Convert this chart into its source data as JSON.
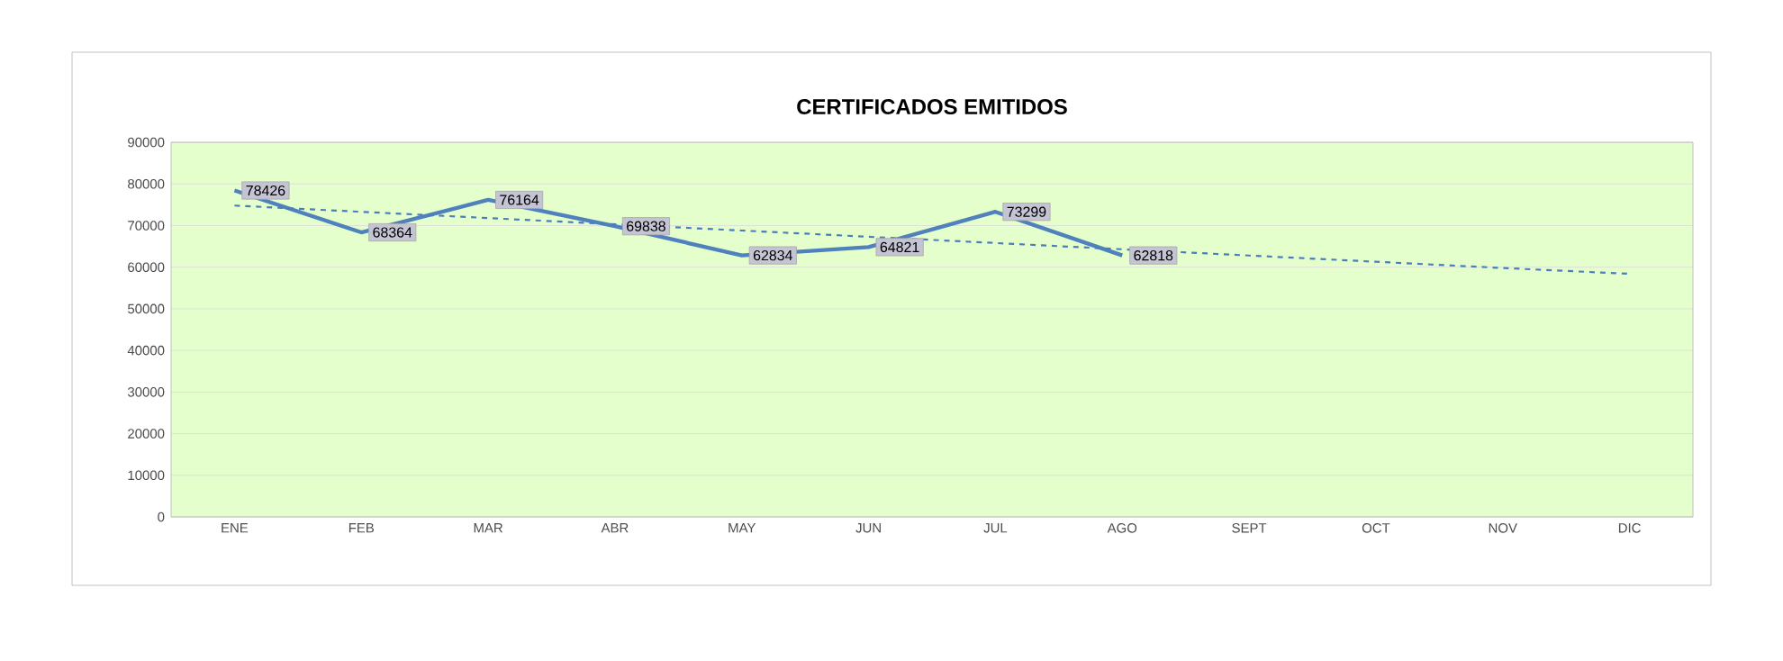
{
  "chart_data": {
    "type": "line",
    "title": "CERTIFICADOS EMITIDOS",
    "categories": [
      "ENE",
      "FEB",
      "MAR",
      "ABR",
      "MAY",
      "JUN",
      "JUL",
      "AGO",
      "SEPT",
      "OCT",
      "NOV",
      "DIC"
    ],
    "series": [
      {
        "color": "#4f81bd",
        "values": [
          78426,
          68364,
          76164,
          69838,
          62834,
          64821,
          73299,
          62818,
          null,
          null,
          null,
          null
        ],
        "value_labels": [
          "78426",
          "68364",
          "76164",
          "69838",
          "62834",
          "64821",
          "73299",
          "62818",
          null,
          null,
          null,
          null
        ]
      },
      {
        "color": "#4a7ebb",
        "line_style": "dashed",
        "values": [
          74800,
          73300,
          71800,
          70300,
          68800,
          67300,
          65800,
          64300,
          62800,
          61300,
          59800,
          58400
        ]
      }
    ],
    "ylim": [
      0,
      90000
    ],
    "yticks": [
      0,
      10000,
      20000,
      30000,
      40000,
      50000,
      60000,
      70000,
      80000,
      90000
    ],
    "grid": "y",
    "line_style": "solid"
  }
}
